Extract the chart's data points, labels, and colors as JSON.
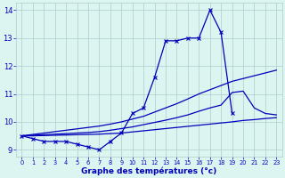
{
  "x_hours": [
    0,
    1,
    2,
    3,
    4,
    5,
    6,
    7,
    8,
    9,
    10,
    11,
    12,
    13,
    14,
    15,
    16,
    17,
    18,
    19,
    20,
    21,
    22,
    23
  ],
  "temp_main": [
    9.5,
    9.4,
    9.3,
    9.3,
    9.3,
    9.2,
    9.1,
    9.0,
    9.3,
    9.6,
    10.3,
    10.5,
    11.6,
    12.9,
    12.9,
    13.0,
    13.0,
    14.0,
    13.2,
    10.3,
    null,
    null,
    null,
    null
  ],
  "temp_upper": [
    9.5,
    9.55,
    9.6,
    9.65,
    9.7,
    9.75,
    9.8,
    9.85,
    9.92,
    10.0,
    10.1,
    10.2,
    10.35,
    10.5,
    10.65,
    10.82,
    11.0,
    11.15,
    11.3,
    11.45,
    11.55,
    11.65,
    11.75,
    11.85
  ],
  "temp_mid": [
    9.5,
    9.52,
    9.54,
    9.56,
    9.58,
    9.6,
    9.62,
    9.65,
    9.7,
    9.76,
    9.82,
    9.9,
    9.98,
    10.06,
    10.15,
    10.25,
    10.38,
    10.5,
    10.6,
    11.05,
    11.1,
    10.5,
    10.3,
    10.25
  ],
  "temp_lower": [
    9.5,
    9.5,
    9.51,
    9.52,
    9.53,
    9.54,
    9.55,
    9.56,
    9.58,
    9.6,
    9.64,
    9.68,
    9.72,
    9.76,
    9.8,
    9.84,
    9.88,
    9.92,
    9.96,
    10.0,
    10.05,
    10.08,
    10.12,
    10.15
  ],
  "ylim": [
    8.75,
    14.25
  ],
  "xlim": [
    -0.5,
    23.5
  ],
  "yticks": [
    9,
    10,
    11,
    12,
    13,
    14
  ],
  "xticks": [
    0,
    1,
    2,
    3,
    4,
    5,
    6,
    7,
    8,
    9,
    10,
    11,
    12,
    13,
    14,
    15,
    16,
    17,
    18,
    19,
    20,
    21,
    22,
    23
  ],
  "xlabel": "Graphe des températures (°c)",
  "bg_color": "#ddf5f0",
  "line_color": "#0000bb",
  "grid_color": "#aacccc",
  "label_color": "#0000bb"
}
